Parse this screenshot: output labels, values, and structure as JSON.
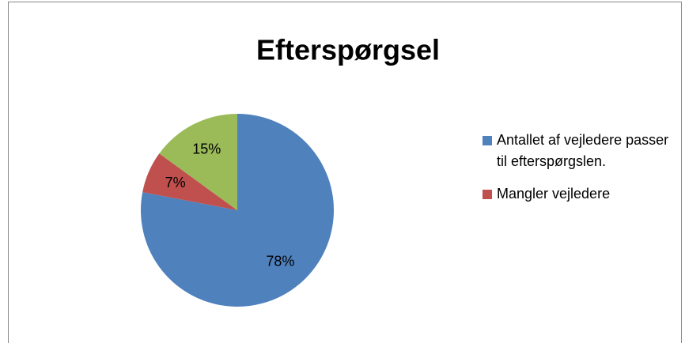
{
  "chart_data": {
    "type": "pie",
    "title": "Efterspørgsel",
    "categories": [
      "Antallet af vejledere passer til efterspørgslen.",
      "Mangler vejledere",
      null
    ],
    "values": [
      78,
      7,
      15
    ],
    "value_labels": [
      "78%",
      "7%",
      "15%"
    ],
    "colors": [
      "#4f81bd",
      "#c0504d",
      "#9bbb59"
    ],
    "legend": "right"
  }
}
